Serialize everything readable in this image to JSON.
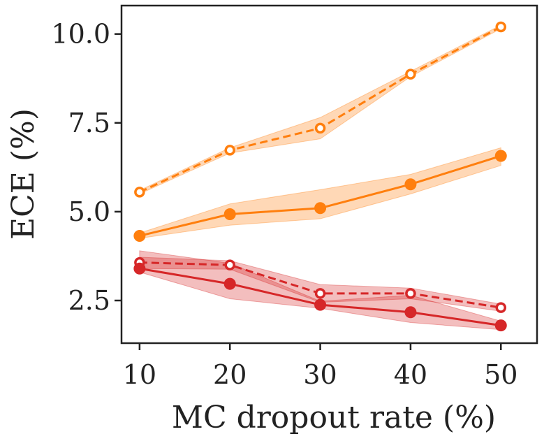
{
  "chart_data": {
    "type": "line",
    "title": "",
    "xlabel": "MC dropout rate (%)",
    "ylabel": "ECE (%)",
    "x": [
      10,
      20,
      30,
      40,
      50
    ],
    "xlim": [
      8,
      54
    ],
    "ylim": [
      1.3,
      10.8
    ],
    "xticks": [
      10,
      20,
      30,
      40,
      50
    ],
    "yticks": [
      2.5,
      5.0,
      7.5,
      10.0
    ],
    "xtick_labels": [
      "10",
      "20",
      "30",
      "40",
      "50"
    ],
    "ytick_labels": [
      "2.5",
      "5.0",
      "7.5",
      "10.0"
    ],
    "grid": false,
    "series": [
      {
        "name": "orange-dashed-hollow",
        "color": "#ff7f0e",
        "linestyle": "dashed",
        "marker": "hollow-circle",
        "values": [
          5.55,
          6.73,
          7.35,
          8.87,
          10.2
        ],
        "lower": [
          5.5,
          6.65,
          7.05,
          8.8,
          10.15
        ],
        "upper": [
          5.6,
          6.8,
          7.65,
          8.95,
          10.25
        ]
      },
      {
        "name": "orange-solid-filled",
        "color": "#ff7f0e",
        "linestyle": "solid",
        "marker": "filled-circle",
        "values": [
          4.32,
          4.93,
          5.1,
          5.77,
          6.57
        ],
        "lower": [
          4.25,
          4.62,
          4.8,
          5.5,
          6.3
        ],
        "upper": [
          4.4,
          5.22,
          5.62,
          6.05,
          6.8
        ]
      },
      {
        "name": "red-dashed-hollow",
        "color": "#d62728",
        "linestyle": "dashed",
        "marker": "hollow-circle",
        "values": [
          3.57,
          3.5,
          2.7,
          2.7,
          2.3
        ],
        "lower": [
          3.4,
          3.38,
          2.45,
          2.55,
          2.2
        ],
        "upper": [
          3.72,
          3.62,
          2.95,
          2.85,
          2.4
        ]
      },
      {
        "name": "red-solid-filled",
        "color": "#d62728",
        "linestyle": "solid",
        "marker": "filled-circle",
        "values": [
          3.4,
          2.97,
          2.38,
          2.17,
          1.8
        ],
        "lower": [
          3.3,
          2.55,
          2.28,
          1.88,
          1.68
        ],
        "upper": [
          3.9,
          3.55,
          2.48,
          2.65,
          1.92
        ]
      }
    ]
  }
}
